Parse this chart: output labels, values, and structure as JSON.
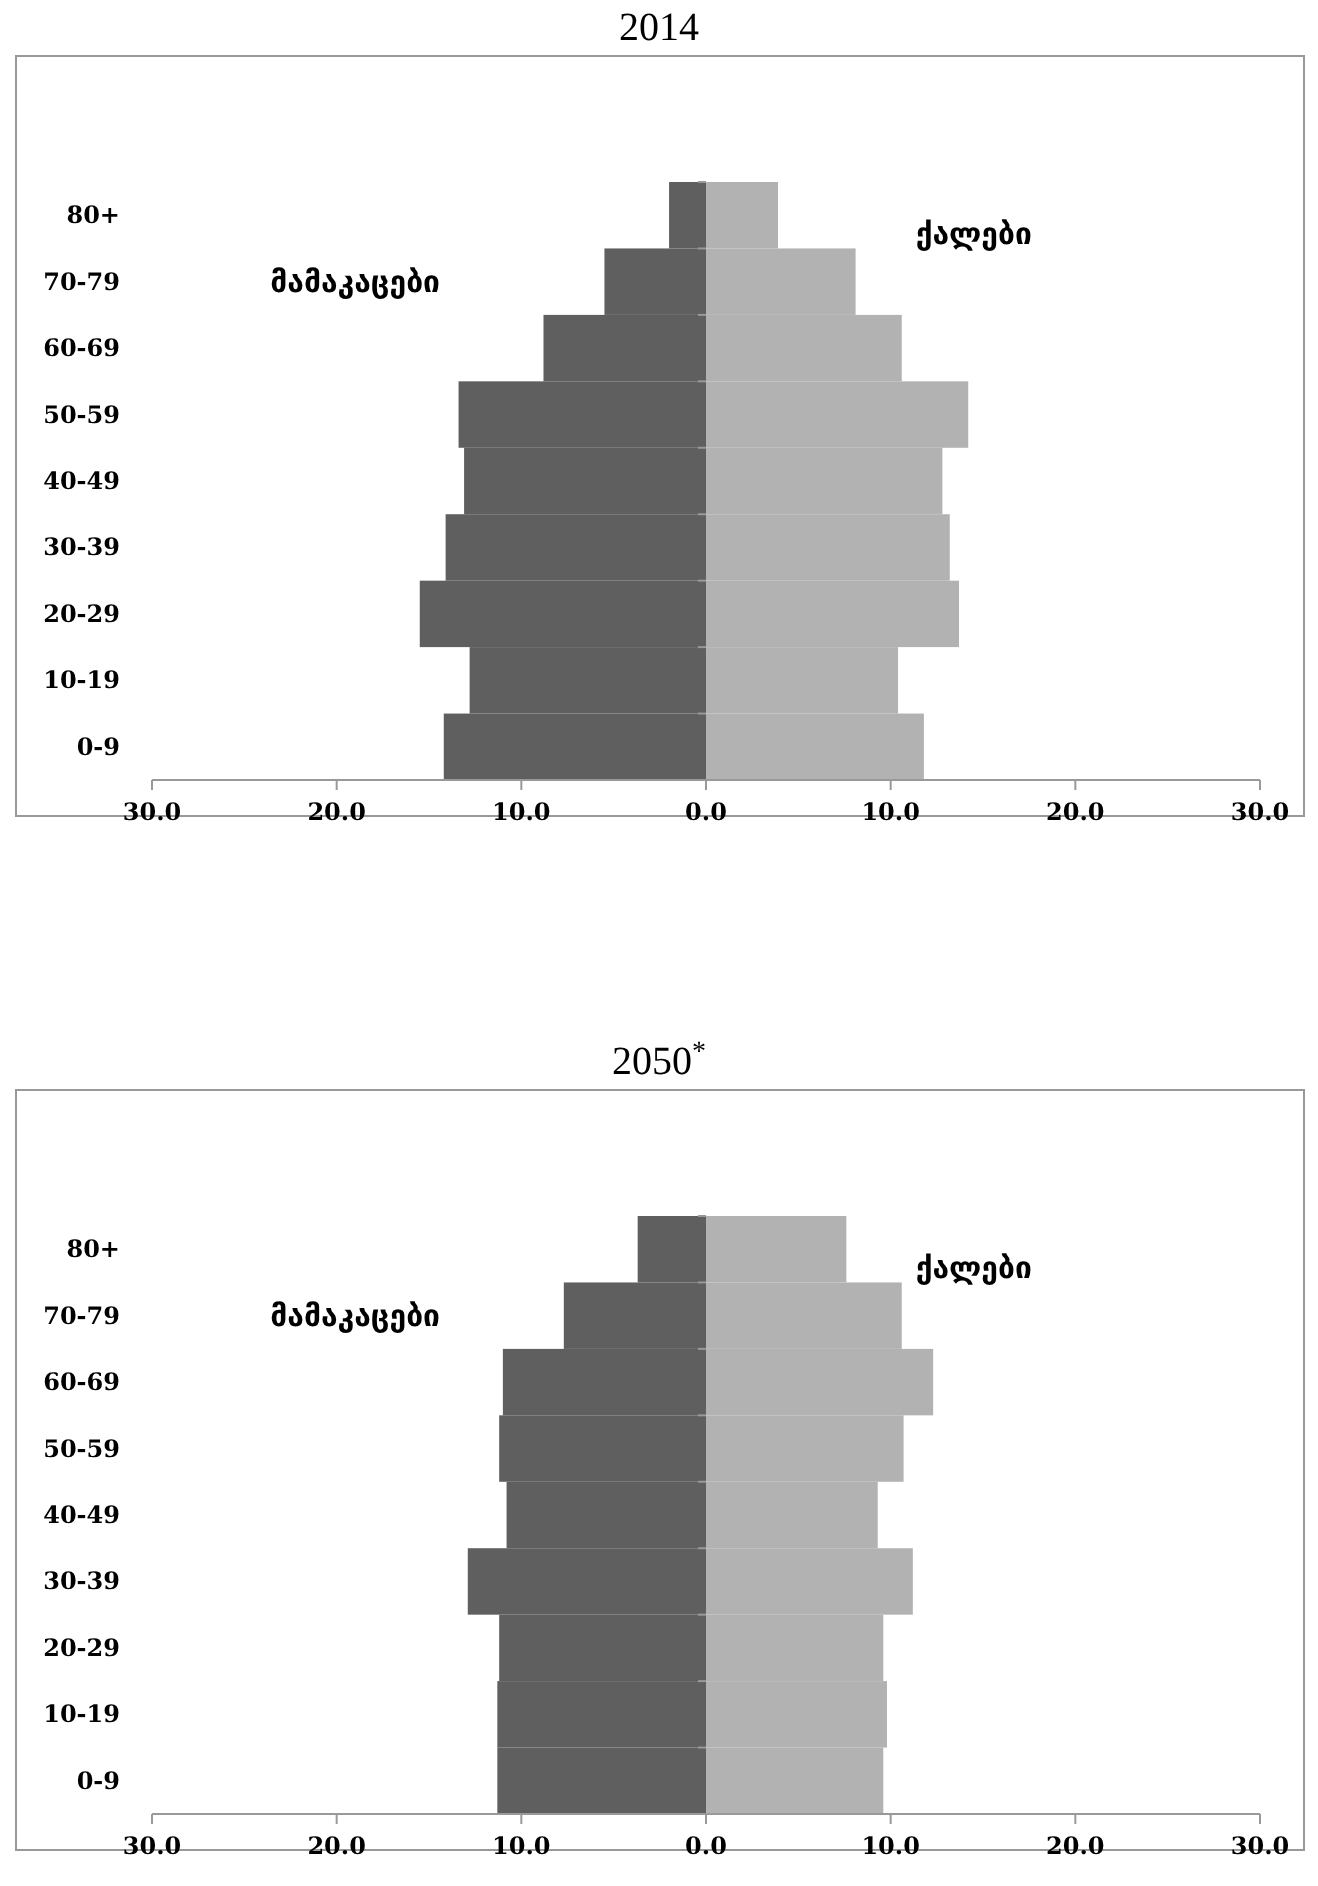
{
  "chart_data": [
    {
      "type": "bar",
      "title": "2014",
      "orientation": "horizontal",
      "stacked": true,
      "categories": [
        "80+",
        "70-79",
        "60-69",
        "50-59",
        "40-49",
        "30-39",
        "20-29",
        "10-19",
        "0-9"
      ],
      "series": [
        {
          "name": "მამაკაცები",
          "color": "#5f5f5f",
          "values": [
            -2.0,
            -5.5,
            -8.8,
            -13.4,
            -13.1,
            -14.1,
            -15.5,
            -12.8,
            -14.2
          ]
        },
        {
          "name": "ქალები",
          "color": "#b2b2b2",
          "values": [
            3.9,
            8.1,
            10.6,
            14.2,
            12.8,
            13.2,
            13.7,
            10.4,
            11.8
          ]
        }
      ],
      "xlim": [
        -30,
        30
      ],
      "xticks": [
        {
          "value": -30,
          "label": "30.0"
        },
        {
          "value": -20,
          "label": "20.0"
        },
        {
          "value": -10,
          "label": "10.0"
        },
        {
          "value": 0,
          "label": "0.0"
        },
        {
          "value": 10,
          "label": "10.0"
        },
        {
          "value": 20,
          "label": "20.0"
        },
        {
          "value": 30,
          "label": "30.0"
        }
      ]
    },
    {
      "type": "bar",
      "title": "2050$^{*}$",
      "orientation": "horizontal",
      "stacked": true,
      "categories": [
        "80+",
        "70-79",
        "60-69",
        "50-59",
        "40-49",
        "30-39",
        "20-29",
        "10-19",
        "0-9"
      ],
      "series": [
        {
          "name": "მამაკაცები",
          "color": "#5f5f5f",
          "values": [
            -3.7,
            -7.7,
            -11.0,
            -11.2,
            -10.8,
            -12.9,
            -11.2,
            -11.3,
            -11.3
          ]
        },
        {
          "name": "ქალები",
          "color": "#b2b2b2",
          "values": [
            7.6,
            10.6,
            12.3,
            10.7,
            9.3,
            11.2,
            9.6,
            9.8,
            9.6
          ]
        }
      ],
      "xlim": [
        -30,
        30
      ],
      "xticks": [
        {
          "value": -30,
          "label": "30.0"
        },
        {
          "value": -20,
          "label": "20.0"
        },
        {
          "value": -10,
          "label": "10.0"
        },
        {
          "value": 0,
          "label": "0.0"
        },
        {
          "value": 10,
          "label": "10.0"
        },
        {
          "value": 20,
          "label": "20.0"
        },
        {
          "value": 30,
          "label": "30.0"
        }
      ]
    }
  ]
}
